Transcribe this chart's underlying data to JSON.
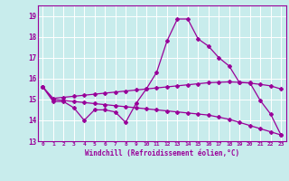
{
  "xlabel": "Windchill (Refroidissement éolien,°C)",
  "background_color": "#c8ecec",
  "grid_color": "#ffffff",
  "line_color": "#990099",
  "xmin": -0.5,
  "xmax": 23.5,
  "ymin": 13,
  "ymax": 19.5,
  "yticks": [
    13,
    14,
    15,
    16,
    17,
    18,
    19
  ],
  "xticks": [
    0,
    1,
    2,
    3,
    4,
    5,
    6,
    7,
    8,
    9,
    10,
    11,
    12,
    13,
    14,
    15,
    16,
    17,
    18,
    19,
    20,
    21,
    22,
    23
  ],
  "line1_x": [
    0,
    1,
    2,
    3,
    4,
    5,
    6,
    7,
    8,
    9,
    10,
    11,
    12,
    13,
    14,
    15,
    16,
    17,
    18,
    19,
    20,
    21,
    22,
    23
  ],
  "line1_y": [
    15.6,
    14.9,
    14.9,
    14.6,
    14.0,
    14.5,
    14.5,
    14.4,
    13.9,
    14.8,
    15.5,
    16.3,
    17.8,
    18.85,
    18.85,
    17.9,
    17.55,
    17.0,
    16.6,
    15.8,
    15.8,
    14.95,
    14.3,
    13.3
  ],
  "line2_x": [
    0,
    1,
    2,
    3,
    4,
    5,
    6,
    7,
    8,
    9,
    10,
    11,
    12,
    13,
    14,
    15,
    16,
    17,
    18,
    19,
    20,
    21,
    22,
    23
  ],
  "line2_y": [
    15.6,
    15.05,
    15.1,
    15.15,
    15.2,
    15.25,
    15.3,
    15.35,
    15.4,
    15.45,
    15.5,
    15.55,
    15.6,
    15.65,
    15.7,
    15.75,
    15.8,
    15.82,
    15.84,
    15.82,
    15.78,
    15.72,
    15.65,
    15.5
  ],
  "line3_x": [
    0,
    1,
    2,
    3,
    4,
    5,
    6,
    7,
    8,
    9,
    10,
    11,
    12,
    13,
    14,
    15,
    16,
    17,
    18,
    19,
    20,
    21,
    22,
    23
  ],
  "line3_y": [
    15.6,
    15.0,
    14.95,
    14.9,
    14.85,
    14.8,
    14.75,
    14.7,
    14.65,
    14.6,
    14.55,
    14.5,
    14.45,
    14.4,
    14.35,
    14.3,
    14.25,
    14.15,
    14.05,
    13.9,
    13.75,
    13.6,
    13.45,
    13.3
  ]
}
